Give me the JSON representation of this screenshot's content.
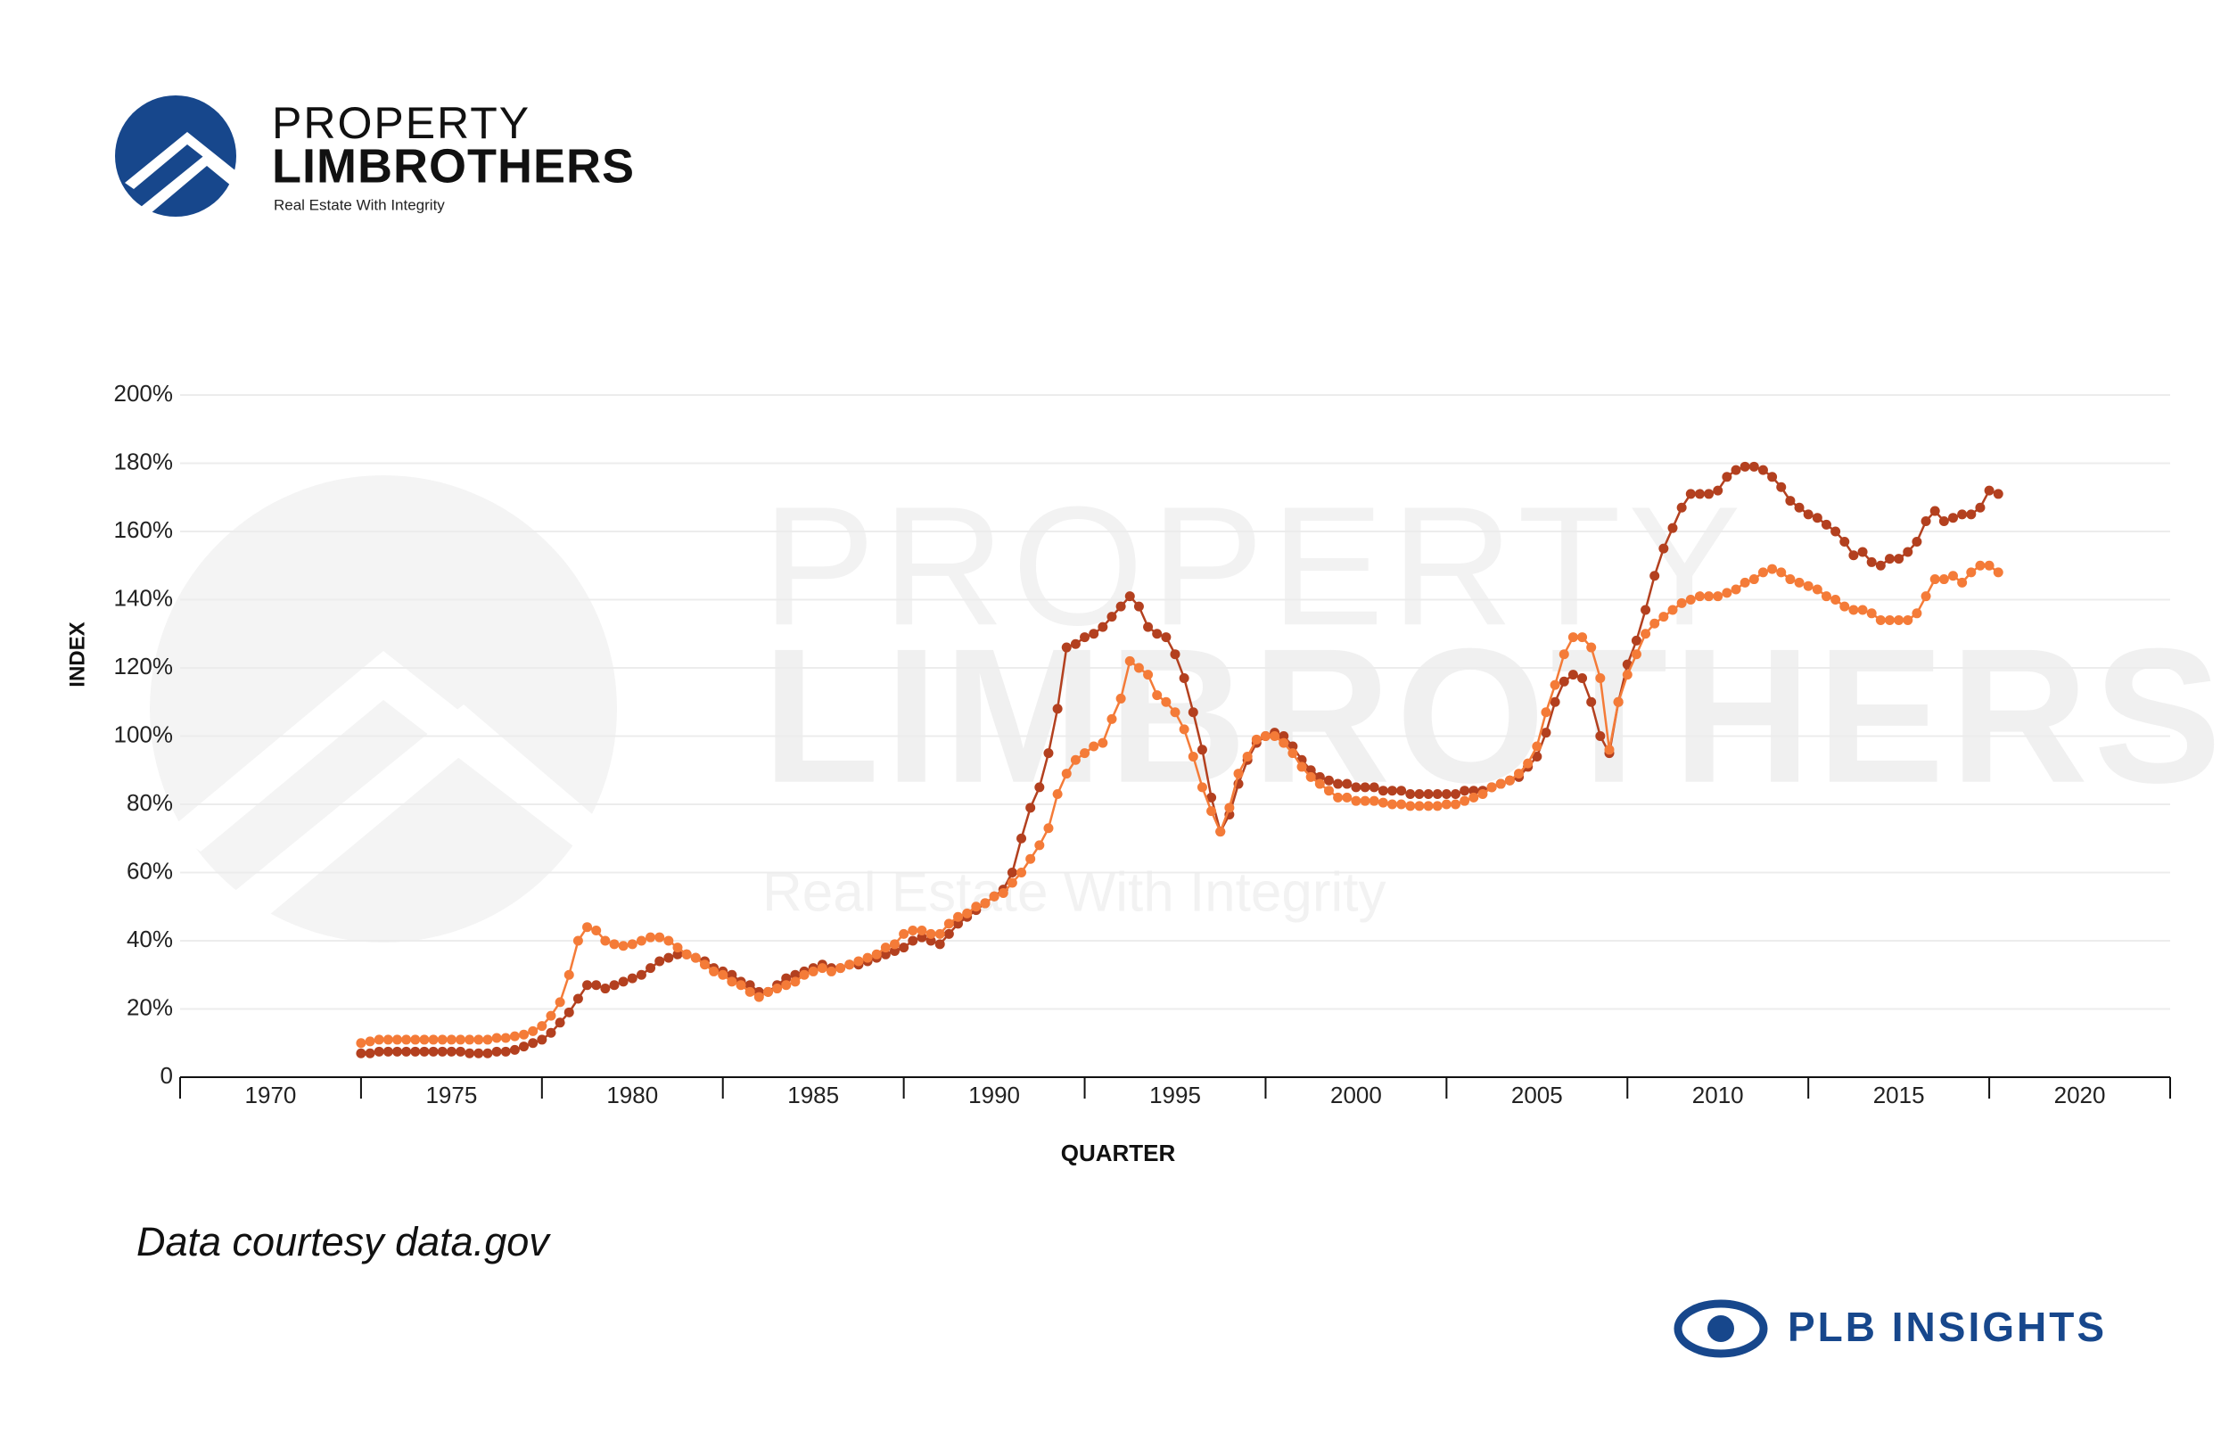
{
  "header": {
    "brand_top": "PROPERTY",
    "brand_bottom": "LIMBROTHERS",
    "tagline": "Real Estate With Integrity"
  },
  "chart_data": {
    "type": "line",
    "y_label": "INDEX",
    "x_label": "QUARTER",
    "xlim": [
      1967.5,
      2022.5
    ],
    "xticks": [
      1970,
      1975,
      1980,
      1985,
      1990,
      1995,
      2000,
      2005,
      2010,
      2015,
      2020
    ],
    "ylim": [
      0,
      200
    ],
    "yticks": [
      0,
      {
        "value": 20,
        "label": "20%"
      },
      {
        "value": 40,
        "label": "40%"
      },
      {
        "value": 60,
        "label": "60%"
      },
      {
        "value": 80,
        "label": "80%"
      },
      {
        "value": 100,
        "label": "100%"
      },
      {
        "value": 120,
        "label": "120%"
      },
      {
        "value": 140,
        "label": "140%"
      },
      {
        "value": 160,
        "label": "160%"
      },
      {
        "value": 180,
        "label": "180%"
      },
      {
        "value": 200,
        "label": "200%"
      }
    ],
    "grid": true,
    "x": [
      1972.5,
      1972.75,
      1973,
      1973.25,
      1973.5,
      1973.75,
      1974,
      1974.25,
      1974.5,
      1974.75,
      1975,
      1975.25,
      1975.5,
      1975.75,
      1976,
      1976.25,
      1976.5,
      1976.75,
      1977,
      1977.25,
      1977.5,
      1977.75,
      1978,
      1978.25,
      1978.5,
      1978.75,
      1979,
      1979.25,
      1979.5,
      1979.75,
      1980,
      1980.25,
      1980.5,
      1980.75,
      1981,
      1981.25,
      1981.5,
      1981.75,
      1982,
      1982.25,
      1982.5,
      1982.75,
      1983,
      1983.25,
      1983.5,
      1983.75,
      1984,
      1984.25,
      1984.5,
      1984.75,
      1985,
      1985.25,
      1985.5,
      1985.75,
      1986,
      1986.25,
      1986.5,
      1986.75,
      1987,
      1987.25,
      1987.5,
      1987.75,
      1988,
      1988.25,
      1988.5,
      1988.75,
      1989,
      1989.25,
      1989.5,
      1989.75,
      1990,
      1990.25,
      1990.5,
      1990.75,
      1991,
      1991.25,
      1991.5,
      1991.75,
      1992,
      1992.25,
      1992.5,
      1992.75,
      1993,
      1993.25,
      1993.5,
      1993.75,
      1994,
      1994.25,
      1994.5,
      1994.75,
      1995,
      1995.25,
      1995.5,
      1995.75,
      1996,
      1996.25,
      1996.5,
      1996.75,
      1997,
      1997.25,
      1997.5,
      1997.75,
      1998,
      1998.25,
      1998.5,
      1998.75,
      1999,
      1999.25,
      1999.5,
      1999.75,
      2000,
      2000.25,
      2000.5,
      2000.75,
      2001,
      2001.25,
      2001.5,
      2001.75,
      2002,
      2002.25,
      2002.5,
      2002.75,
      2003,
      2003.25,
      2003.5,
      2003.75,
      2004,
      2004.25,
      2004.5,
      2004.75,
      2005,
      2005.25,
      2005.5,
      2005.75,
      2006,
      2006.25,
      2006.5,
      2006.75,
      2007,
      2007.25,
      2007.5,
      2007.75,
      2008,
      2008.25,
      2008.5,
      2008.75,
      2009,
      2009.25,
      2009.5,
      2009.75,
      2010,
      2010.25,
      2010.5,
      2010.75,
      2011,
      2011.25,
      2011.5,
      2011.75,
      2012,
      2012.25,
      2012.5,
      2012.75,
      2013,
      2013.25,
      2013.5,
      2013.75,
      2014,
      2014.25,
      2014.5,
      2014.75,
      2015,
      2015.25,
      2015.5,
      2015.75,
      2016,
      2016.25,
      2016.5,
      2016.75,
      2017,
      2017.25,
      2017.5,
      2017.75
    ],
    "series": [
      {
        "color": "#b3401f",
        "values": [
          7,
          7,
          7.5,
          7.5,
          7.5,
          7.5,
          7.5,
          7.5,
          7.5,
          7.5,
          7.5,
          7.5,
          7,
          7,
          7,
          7.5,
          7.5,
          8,
          9,
          10,
          11,
          13,
          16,
          19,
          23,
          27,
          27,
          26,
          27,
          28,
          29,
          30,
          32,
          34,
          35,
          36,
          36,
          35,
          34,
          32,
          31,
          30,
          28,
          27,
          25,
          25,
          27,
          29,
          30,
          31,
          32,
          33,
          32,
          32,
          33,
          33,
          34,
          35,
          36,
          37,
          38,
          40,
          41,
          40,
          39,
          42,
          45,
          47,
          49,
          51,
          53,
          55,
          60,
          70,
          79,
          85,
          95,
          108,
          126,
          127,
          129,
          130,
          132,
          135,
          138,
          141,
          138,
          132,
          130,
          129,
          124,
          117,
          107,
          96,
          82,
          72,
          77,
          86,
          93,
          98,
          100,
          101,
          100,
          97,
          93,
          90,
          88,
          87,
          86,
          86,
          85,
          85,
          85,
          84,
          84,
          84,
          83,
          83,
          83,
          83,
          83,
          83,
          84,
          84,
          84,
          85,
          86,
          87,
          88,
          91,
          94,
          101,
          110,
          116,
          118,
          117,
          110,
          100,
          95,
          110,
          121,
          128,
          137,
          147,
          155,
          161,
          167,
          171,
          171,
          171,
          172,
          176,
          178,
          179,
          179,
          178,
          176,
          173,
          169,
          167,
          165,
          164,
          162,
          160,
          157,
          153,
          154,
          151,
          150,
          152,
          152,
          154,
          157,
          163,
          166,
          163,
          164,
          165,
          165,
          167,
          172,
          171
        ]
      },
      {
        "color": "#f47b38",
        "values": [
          10,
          10.5,
          11,
          11,
          11,
          11,
          11,
          11,
          11,
          11,
          11,
          11,
          11,
          11,
          11,
          11.5,
          11.5,
          12,
          12.5,
          13.5,
          15,
          18,
          22,
          30,
          40,
          44,
          43,
          40,
          39,
          38.5,
          39,
          40,
          41,
          41,
          40,
          38,
          36,
          35,
          33,
          31,
          30,
          28,
          27,
          25,
          23.5,
          25,
          26,
          27,
          28,
          30,
          31,
          32,
          31,
          32,
          33,
          34,
          35,
          36,
          38,
          39,
          42,
          43,
          43,
          42,
          42,
          45,
          47,
          48,
          50,
          51,
          53,
          54,
          57,
          60,
          64,
          68,
          73,
          83,
          89,
          93,
          95,
          97,
          98,
          105,
          111,
          122,
          120,
          118,
          112,
          110,
          107,
          102,
          94,
          85,
          78,
          72,
          79,
          89,
          94,
          99,
          100,
          100,
          98,
          95,
          91,
          88,
          86,
          84,
          82,
          82,
          81,
          81,
          81,
          80.5,
          80,
          80,
          79.5,
          79.5,
          79.5,
          79.5,
          80,
          80,
          81,
          82,
          83,
          85,
          86,
          87,
          89,
          92,
          97,
          107,
          115,
          124,
          129,
          129,
          126,
          117,
          96,
          110,
          118,
          124,
          130,
          133,
          135,
          137,
          139,
          140,
          141,
          141,
          141,
          142,
          143,
          145,
          146,
          148,
          149,
          148,
          146,
          145,
          144,
          143,
          141,
          140,
          138,
          137,
          137,
          136,
          134,
          134,
          134,
          134,
          136,
          141,
          146,
          146,
          147,
          145,
          148,
          150,
          150,
          148
        ]
      }
    ]
  },
  "footer": {
    "source": "Data courtesy data.gov",
    "badge": "PLB INSIGHTS"
  }
}
